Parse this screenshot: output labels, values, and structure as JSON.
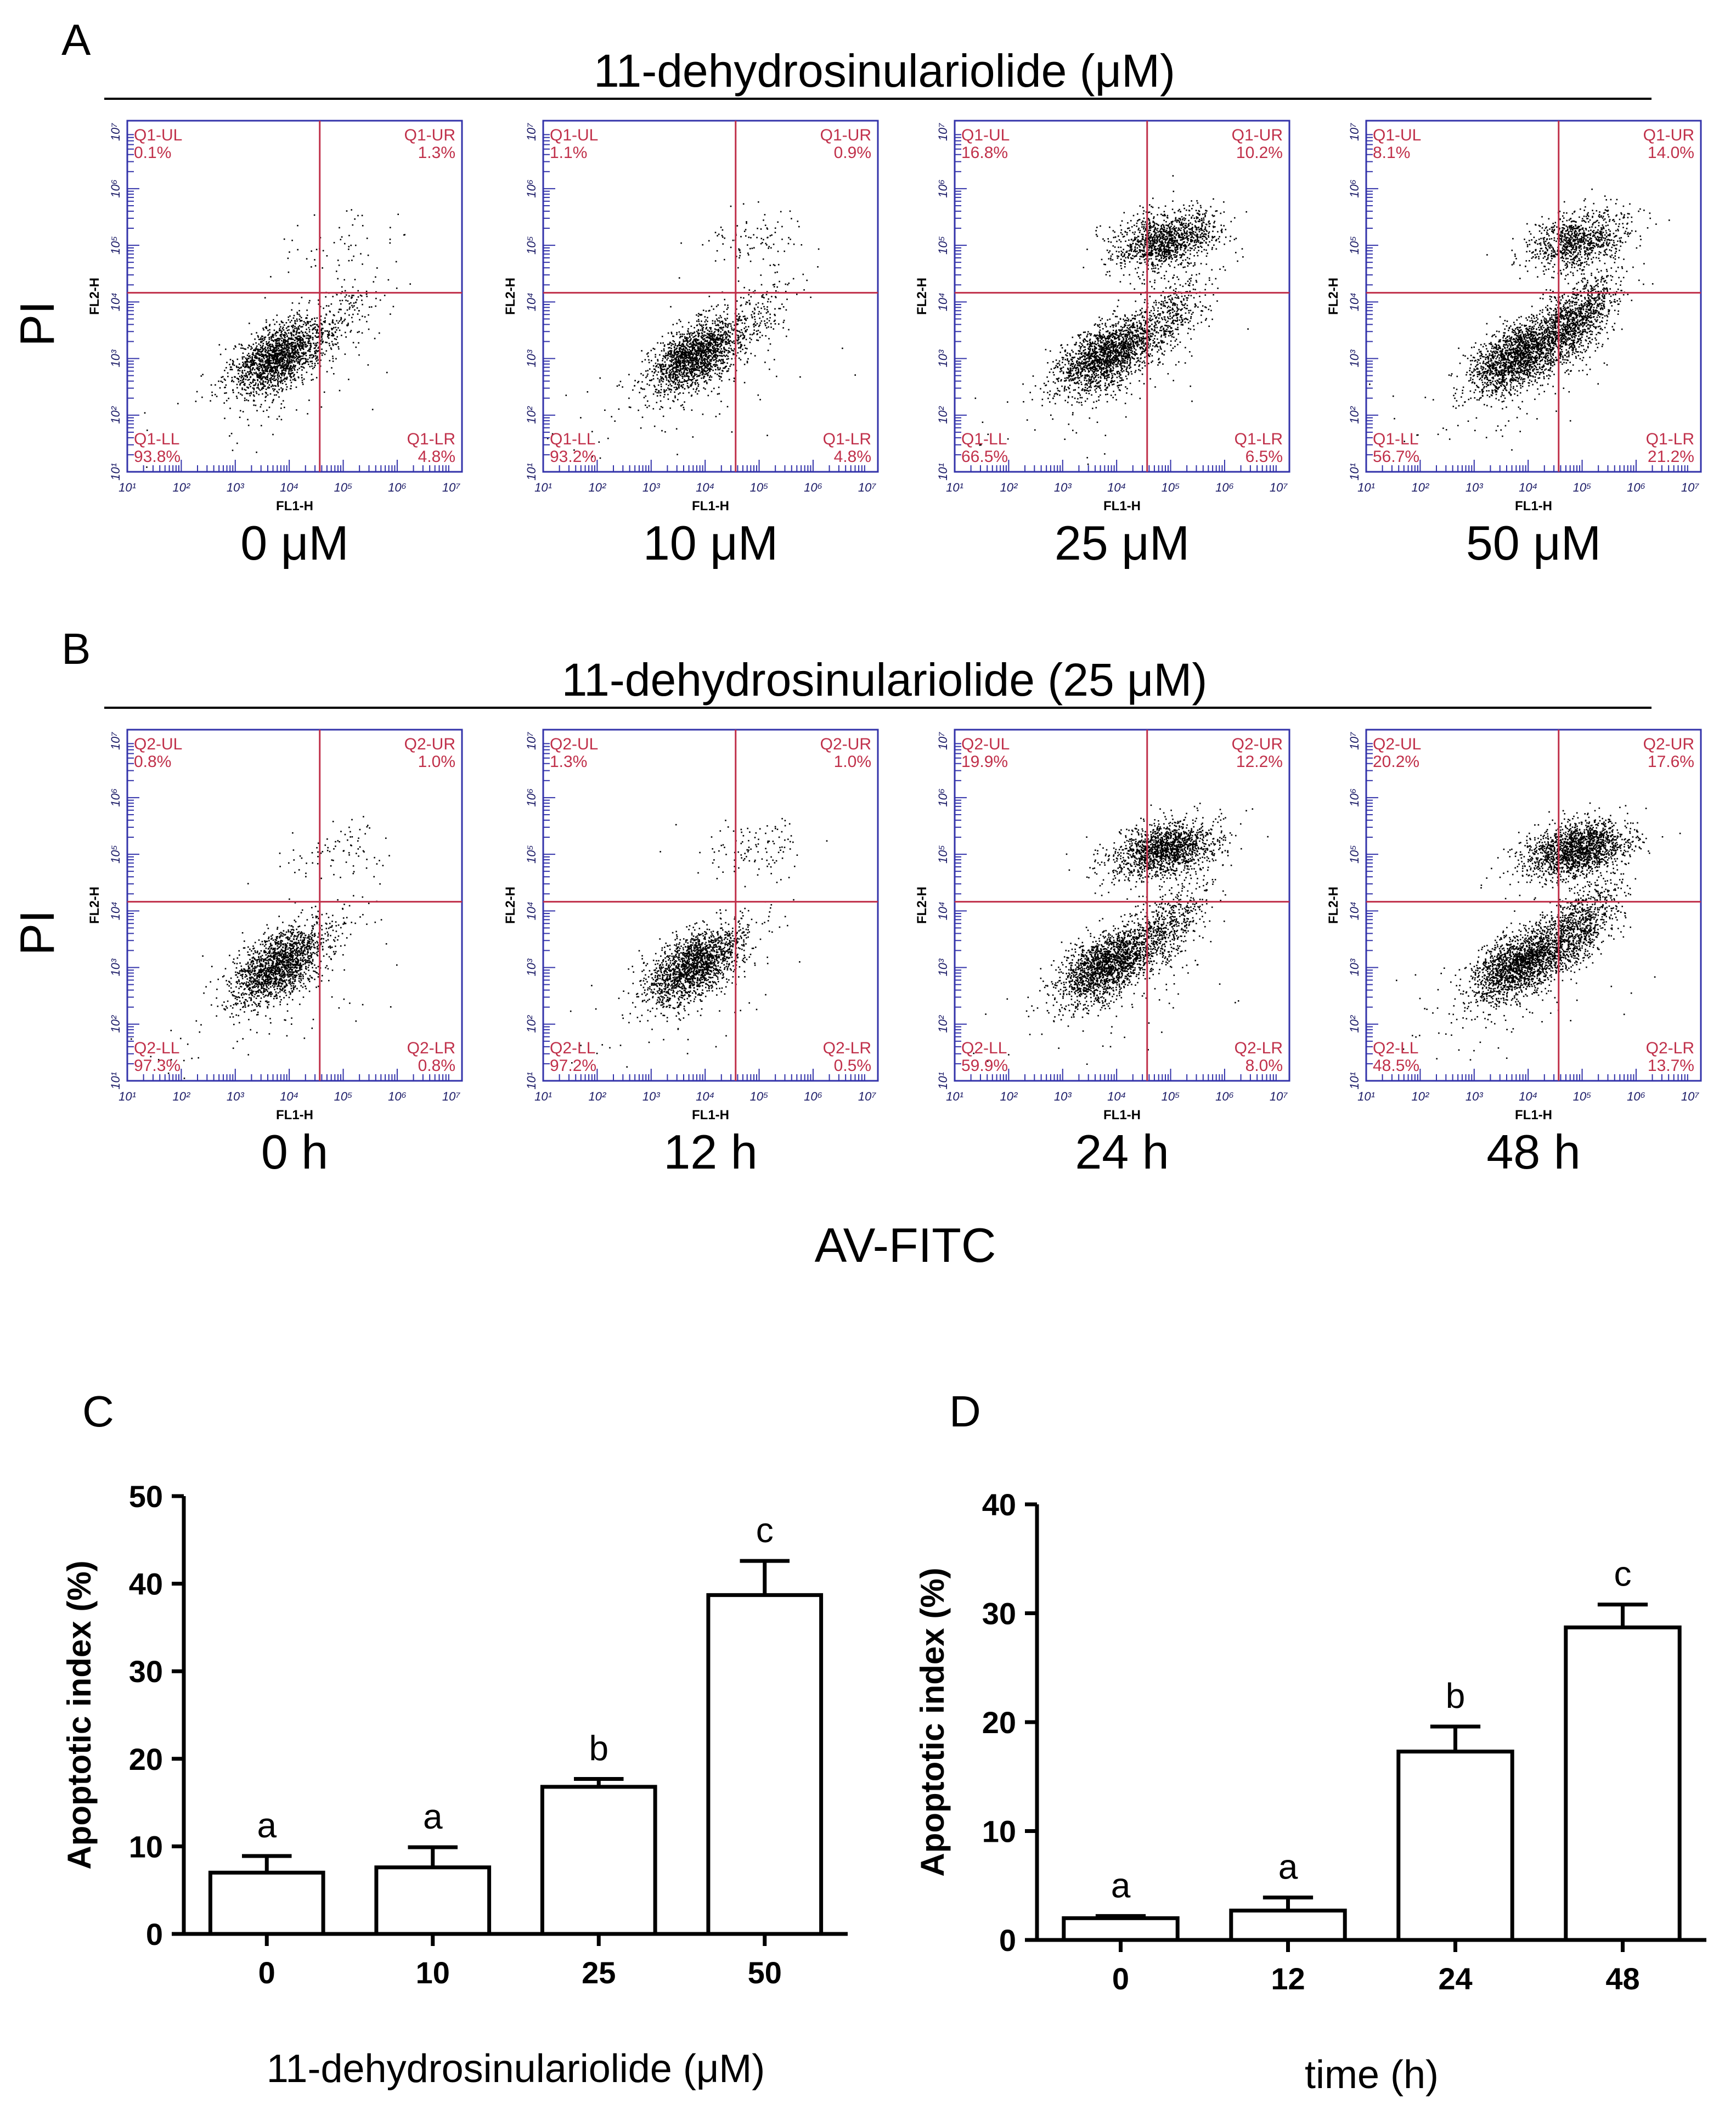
{
  "colors": {
    "ink": "#000000",
    "plot_frame": "#3333aa",
    "gate": "#c0304a",
    "quad_text": "#c0304a",
    "tick_label": "#1a1a66"
  },
  "panel_a": {
    "letter": "A",
    "header": "11-dehydrosinulariolide  (μM)",
    "y_title": "PI",
    "plots": [
      {
        "label": "0 μM",
        "ul_name": "Q1-UL",
        "ul_value": "0.1%",
        "ur_name": "Q1-UR",
        "ur_value": "1.3%",
        "ll_name": "Q1-LL",
        "ll_value": "93.8%",
        "lr_name": "Q1-LR",
        "lr_value": "4.8%",
        "axis_x": "FL1-H",
        "axis_y": "FL2-H"
      },
      {
        "label": "10 μM",
        "ul_name": "Q1-UL",
        "ul_value": "1.1%",
        "ur_name": "Q1-UR",
        "ur_value": "0.9%",
        "ll_name": "Q1-LL",
        "ll_value": "93.2%",
        "lr_name": "Q1-LR",
        "lr_value": "4.8%",
        "axis_x": "FL1-H",
        "axis_y": "FL2-H"
      },
      {
        "label": "25 μM",
        "ul_name": "Q1-UL",
        "ul_value": "16.8%",
        "ur_name": "Q1-UR",
        "ur_value": "10.2%",
        "ll_name": "Q1-LL",
        "ll_value": "66.5%",
        "lr_name": "Q1-LR",
        "lr_value": "6.5%",
        "axis_x": "FL1-H",
        "axis_y": "FL2-H"
      },
      {
        "label": "50 μM",
        "ul_name": "Q1-UL",
        "ul_value": "8.1%",
        "ur_name": "Q1-UR",
        "ur_value": "14.0%",
        "ll_name": "Q1-LL",
        "ll_value": "56.7%",
        "lr_name": "Q1-LR",
        "lr_value": "21.2%",
        "axis_x": "FL1-H",
        "axis_y": "FL2-H"
      }
    ]
  },
  "panel_b": {
    "letter": "B",
    "header": "11-dehydrosinulariolide  (25 μM)",
    "y_title": "PI",
    "x_title": "AV-FITC",
    "plots": [
      {
        "label": "0 h",
        "ul_name": "Q2-UL",
        "ul_value": "0.8%",
        "ur_name": "Q2-UR",
        "ur_value": "1.0%",
        "ll_name": "Q2-LL",
        "ll_value": "97.3%",
        "lr_name": "Q2-LR",
        "lr_value": "0.8%",
        "axis_x": "FL1-H",
        "axis_y": "FL2-H"
      },
      {
        "label": "12 h",
        "ul_name": "Q2-UL",
        "ul_value": "1.3%",
        "ur_name": "Q2-UR",
        "ur_value": "1.0%",
        "ll_name": "Q2-LL",
        "ll_value": "97.2%",
        "lr_name": "Q2-LR",
        "lr_value": "0.5%",
        "axis_x": "FL1-H",
        "axis_y": "FL2-H"
      },
      {
        "label": "24 h",
        "ul_name": "Q2-UL",
        "ul_value": "19.9%",
        "ur_name": "Q2-UR",
        "ur_value": "12.2%",
        "ll_name": "Q2-LL",
        "ll_value": "59.9%",
        "lr_name": "Q2-LR",
        "lr_value": "8.0%",
        "axis_x": "FL1-H",
        "axis_y": "FL2-H"
      },
      {
        "label": "48 h",
        "ul_name": "Q2-UL",
        "ul_value": "20.2%",
        "ur_name": "Q2-UR",
        "ur_value": "17.6%",
        "ll_name": "Q2-LL",
        "ll_value": "48.5%",
        "lr_name": "Q2-LR",
        "lr_value": "13.7%",
        "axis_x": "FL1-H",
        "axis_y": "FL2-H"
      }
    ]
  },
  "chart_data": [
    {
      "panel": "C",
      "type": "bar",
      "title": "",
      "xlabel": "11-dehydrosinulariolide  (μM)",
      "ylabel": "Apoptotic index (%)",
      "categories": [
        "0",
        "10",
        "25",
        "50"
      ],
      "values": [
        7.0,
        7.6,
        16.8,
        38.7
      ],
      "errors": [
        1.9,
        2.3,
        0.9,
        3.9
      ],
      "sig_letters": [
        "a",
        "a",
        "b",
        "c"
      ],
      "ylim": [
        0,
        50
      ],
      "yticks": [
        "0",
        "10",
        "20",
        "30",
        "40",
        "50"
      ],
      "grid": false,
      "legend": "none"
    },
    {
      "panel": "D",
      "type": "bar",
      "title": "",
      "xlabel": "time (h)",
      "ylabel": "Apoptotic index (%)",
      "categories": [
        "0",
        "12",
        "24",
        "48"
      ],
      "values": [
        2.0,
        2.7,
        17.3,
        28.7
      ],
      "errors": [
        0.2,
        1.2,
        2.3,
        2.1
      ],
      "sig_letters": [
        "a",
        "a",
        "b",
        "c"
      ],
      "ylim": [
        0,
        40
      ],
      "yticks": [
        "0",
        "10",
        "20",
        "30",
        "40"
      ],
      "grid": false,
      "legend": "none"
    }
  ]
}
